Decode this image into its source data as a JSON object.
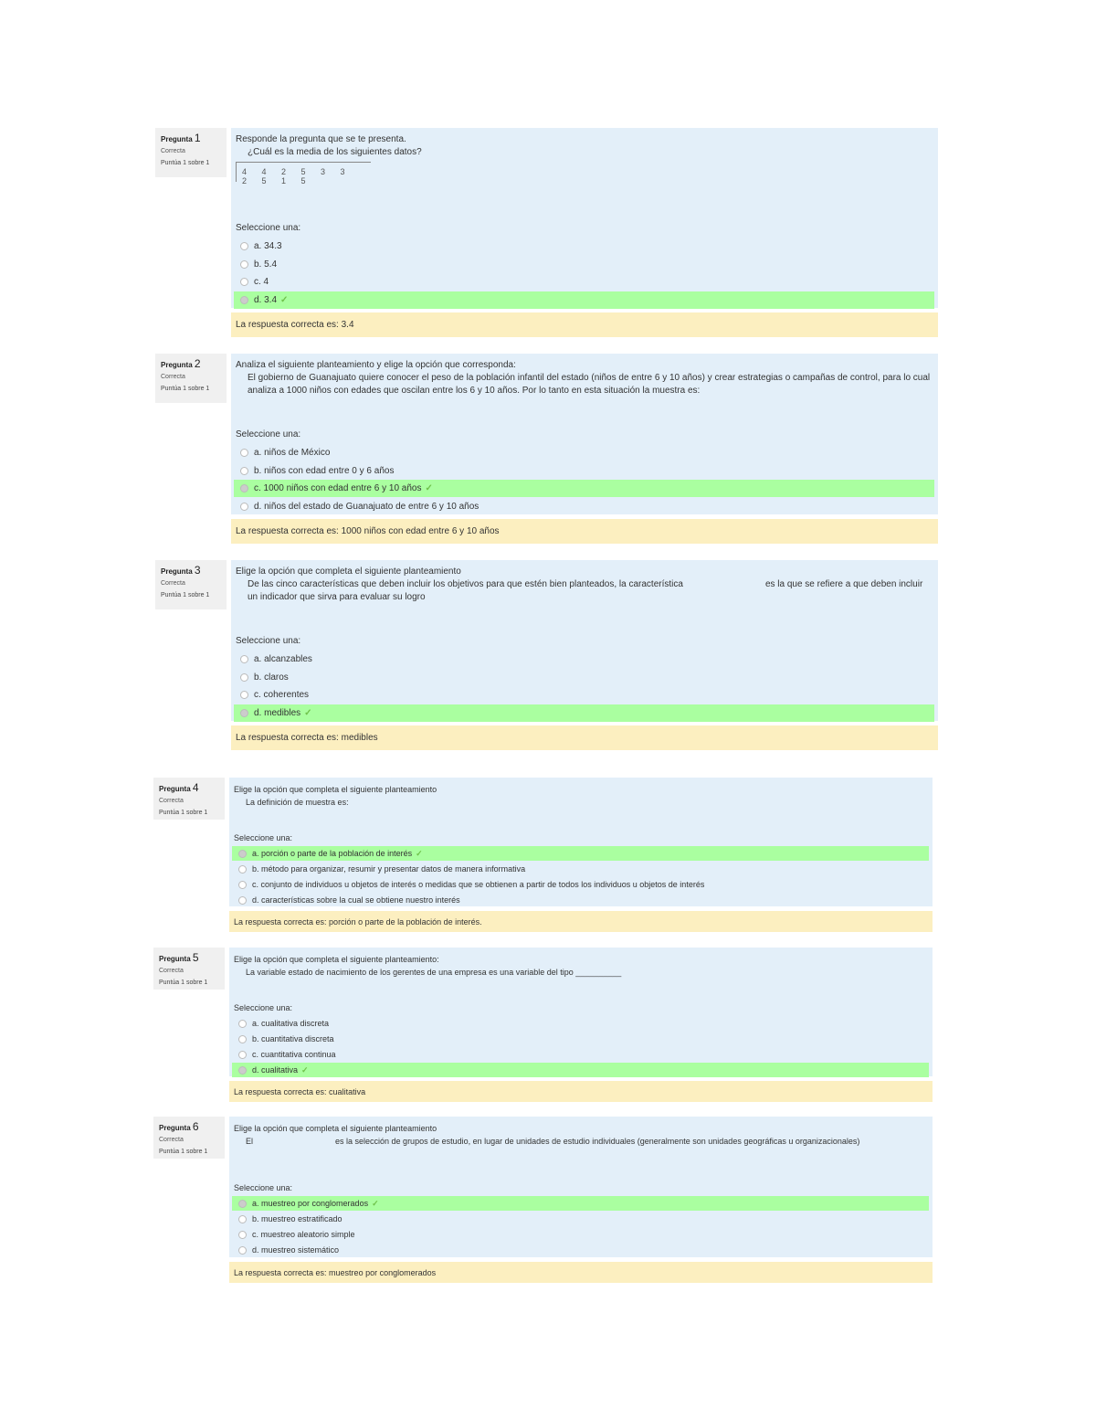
{
  "questions": [
    {
      "number_label": "Pregunta",
      "number": "1",
      "status": "Correcta",
      "grade": "Puntúa 1 sobre 1",
      "instruction": "Responde la pregunta que se te presenta.",
      "text": "¿Cuál es la media de los siguientes datos?",
      "data_values": "4 4 2 5 3 3 2 5 1 5",
      "select_label": "Seleccione una:",
      "options": [
        "a. 34.3",
        "b. 5.4",
        "c. 4",
        "d. 3.4"
      ],
      "selected": 3,
      "feedback": "La respuesta correcta es: 3.4"
    },
    {
      "number_label": "Pregunta",
      "number": "2",
      "status": "Correcta",
      "grade": "Puntúa 1 sobre 1",
      "instruction": "Analiza el siguiente planteamiento y elige la opción que corresponda:",
      "text": "El gobierno de Guanajuato quiere conocer el peso de la población infantil del estado (niños de entre 6 y 10 años) y crear estrategias o campañas de control, para lo cual analiza a 1000 niños con edades que oscilan entre los 6 y 10 años. Por lo tanto en esta situación la muestra es:",
      "select_label": "Seleccione una:",
      "options": [
        "a. niños de México",
        "b. niños con edad entre 0 y 6 años",
        "c. 1000 niños con edad entre 6 y 10 años",
        "d. niños del estado de Guanajuato de entre 6 y 10 años"
      ],
      "selected": 2,
      "feedback": "La respuesta correcta es: 1000 niños con edad entre 6 y 10 años"
    },
    {
      "number_label": "Pregunta",
      "number": "3",
      "status": "Correcta",
      "grade": "Puntúa 1 sobre 1",
      "instruction": "Elige la opción que completa el siguiente planteamiento",
      "text": "De las cinco características que deben incluir los objetivos para que estén bien planteados, la característica",
      "text_after": "es la que se refiere a que deben incluir un indicador que sirva para evaluar su logro",
      "select_label": "Seleccione una:",
      "options": [
        "a. alcanzables",
        "b. claros",
        "c. coherentes",
        "d. medibles"
      ],
      "selected": 3,
      "feedback": "La respuesta correcta es: medibles"
    },
    {
      "number_label": "Pregunta",
      "number": "4",
      "status": "Correcta",
      "grade": "Puntúa 1 sobre 1",
      "instruction": "Elige la opción que completa el siguiente planteamiento",
      "text": "La definición de muestra es:",
      "select_label": "Seleccione una:",
      "options": [
        "a. porción o parte de la población de interés",
        "b. método para organizar, resumir y presentar datos de manera informativa",
        "c. conjunto de individuos u objetos de interés o medidas que se obtienen a partir de todos los individuos u objetos de interés",
        "d. características sobre la cual se obtiene nuestro interés"
      ],
      "selected": 0,
      "feedback": "La respuesta correcta es: porción o parte de la población de interés."
    },
    {
      "number_label": "Pregunta",
      "number": "5",
      "status": "Correcta",
      "grade": "Puntúa 1 sobre 1",
      "instruction": "Elige la opción que completa el siguiente planteamiento:",
      "text": "La variable estado de nacimiento de los gerentes de una empresa es una variable del tipo __________",
      "select_label": "Seleccione una:",
      "options": [
        "a. cualitativa discreta",
        "b. cuantitativa discreta",
        "c. cuantitativa continua",
        "d. cualitativa"
      ],
      "selected": 3,
      "feedback": "La respuesta correcta es: cualitativa"
    },
    {
      "number_label": "Pregunta",
      "number": "6",
      "status": "Correcta",
      "grade": "Puntúa 1 sobre 1",
      "instruction": "Elige la opción que completa el siguiente planteamiento",
      "text": "El",
      "text_after": "es la selección de grupos de estudio, en lugar de unidades de estudio individuales (generalmente son unidades geográficas u organizacionales)",
      "select_label": "Seleccione una:",
      "options": [
        "a. muestreo por conglomerados",
        "b. muestreo estratificado",
        "c. muestreo aleatorio simple",
        "d. muestreo sistemático"
      ],
      "selected": 0,
      "feedback": "La respuesta correcta es: muestreo por conglomerados"
    }
  ],
  "colors": {
    "content_bg": "#e3eff9",
    "correct_bg": "#aaffa0",
    "feedback_bg": "#fcefc0",
    "info_bg": "#f0f0f0",
    "check": "#6fc24a"
  },
  "icons": {
    "correct": "check-icon",
    "option": "radio-icon"
  }
}
